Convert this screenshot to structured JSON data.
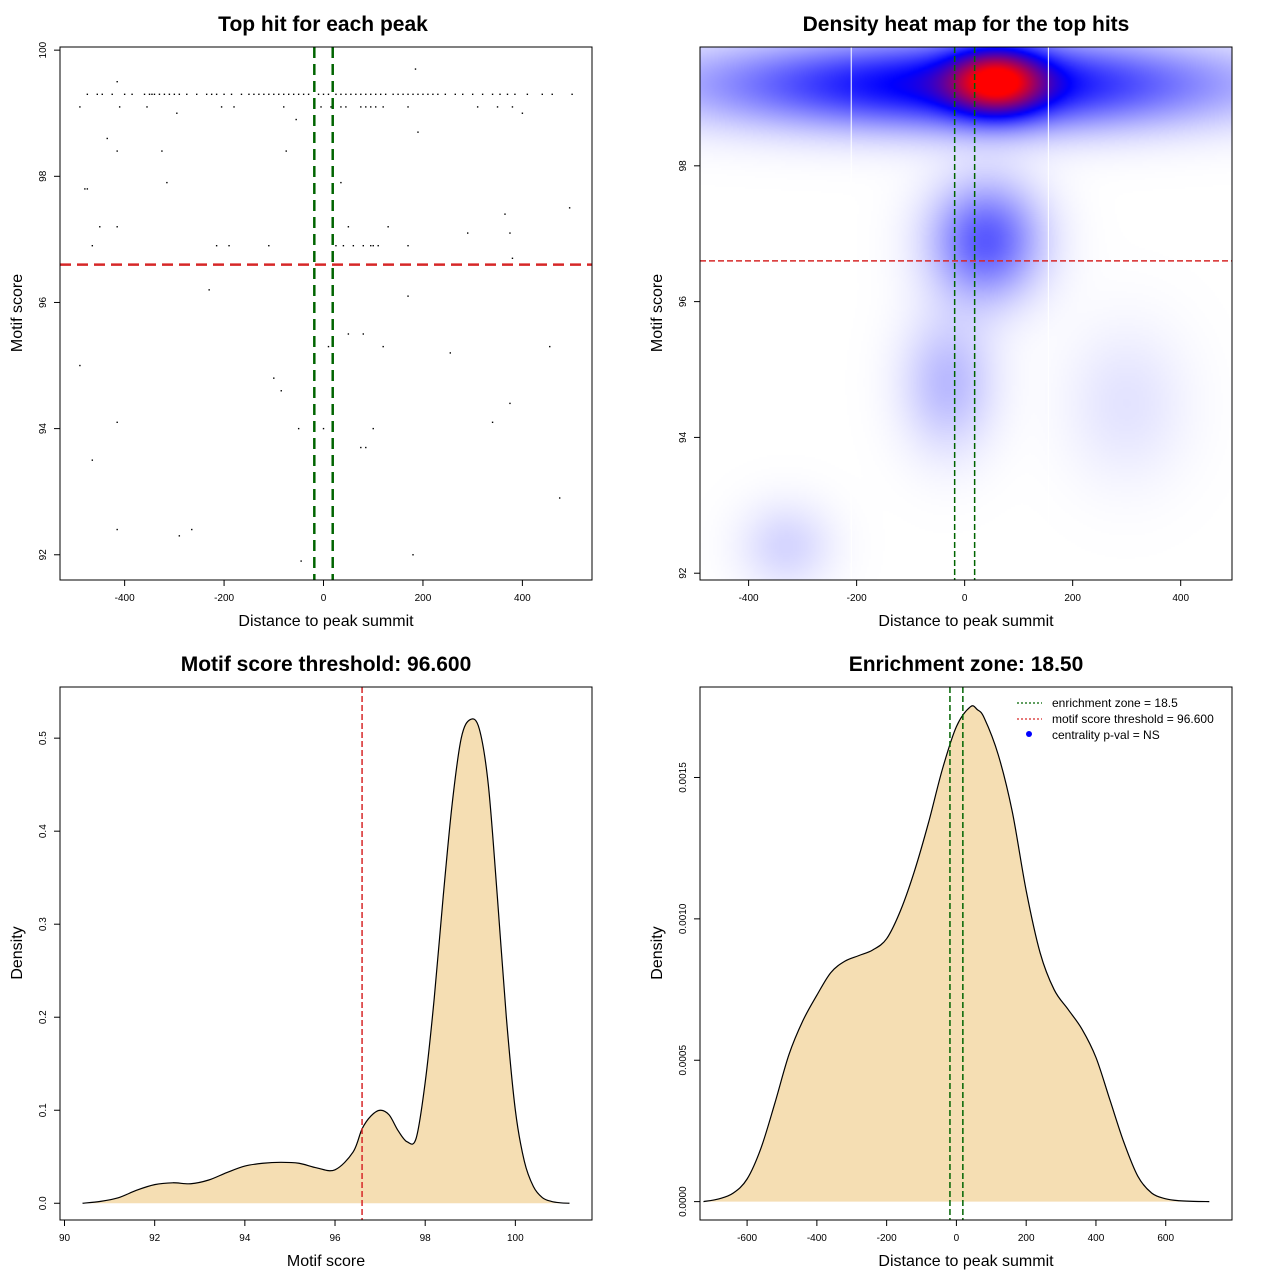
{
  "chart_data": [
    {
      "id": "scatter",
      "type": "scatter",
      "title": "Top hit for each peak",
      "xlabel": "Distance to peak summit",
      "ylabel": "Motif score",
      "xlim": [
        -530,
        540
      ],
      "ylim": [
        91.6,
        100.05
      ],
      "xticks": [
        -400,
        -200,
        0,
        200,
        400
      ],
      "yticks": [
        92,
        94,
        96,
        98,
        100
      ],
      "xtick_labels": [
        "-400",
        "-200",
        "0",
        "200",
        "400"
      ],
      "ytick_labels": [
        "92",
        "94",
        "96",
        "98",
        "100"
      ],
      "hlines": [
        {
          "y": 96.6,
          "color": "#d62728"
        }
      ],
      "vlines": [
        {
          "x": -18.5,
          "color": "#006400"
        },
        {
          "x": 18.5,
          "color": "#006400"
        }
      ],
      "points": [
        [
          -475,
          99.3
        ],
        [
          -455,
          99.3
        ],
        [
          -445,
          99.3
        ],
        [
          -425,
          99.3
        ],
        [
          -410,
          99.1
        ],
        [
          -400,
          99.3
        ],
        [
          -385,
          99.3
        ],
        [
          -360,
          99.3
        ],
        [
          -350,
          99.3
        ],
        [
          -345,
          99.3
        ],
        [
          -340,
          99.3
        ],
        [
          -330,
          99.3
        ],
        [
          -320,
          99.3
        ],
        [
          -310,
          99.3
        ],
        [
          -300,
          99.3
        ],
        [
          -290,
          99.3
        ],
        [
          -275,
          99.3
        ],
        [
          -255,
          99.3
        ],
        [
          -235,
          99.3
        ],
        [
          -225,
          99.3
        ],
        [
          -215,
          99.3
        ],
        [
          -200,
          99.3
        ],
        [
          -185,
          99.3
        ],
        [
          -165,
          99.3
        ],
        [
          -150,
          99.3
        ],
        [
          -140,
          99.3
        ],
        [
          -130,
          99.3
        ],
        [
          -120,
          99.3
        ],
        [
          -110,
          99.3
        ],
        [
          -100,
          99.3
        ],
        [
          -90,
          99.3
        ],
        [
          -80,
          99.3
        ],
        [
          -70,
          99.3
        ],
        [
          -60,
          99.3
        ],
        [
          -50,
          99.3
        ],
        [
          -40,
          99.3
        ],
        [
          -30,
          99.3
        ],
        [
          -10,
          99.3
        ],
        [
          0,
          99.3
        ],
        [
          10,
          99.3
        ],
        [
          25,
          99.3
        ],
        [
          35,
          99.3
        ],
        [
          45,
          99.3
        ],
        [
          55,
          99.3
        ],
        [
          65,
          99.3
        ],
        [
          75,
          99.3
        ],
        [
          85,
          99.3
        ],
        [
          95,
          99.3
        ],
        [
          105,
          99.3
        ],
        [
          115,
          99.3
        ],
        [
          125,
          99.3
        ],
        [
          140,
          99.3
        ],
        [
          150,
          99.3
        ],
        [
          160,
          99.3
        ],
        [
          170,
          99.3
        ],
        [
          180,
          99.3
        ],
        [
          190,
          99.3
        ],
        [
          200,
          99.3
        ],
        [
          210,
          99.3
        ],
        [
          220,
          99.3
        ],
        [
          230,
          99.3
        ],
        [
          245,
          99.3
        ],
        [
          265,
          99.3
        ],
        [
          280,
          99.3
        ],
        [
          300,
          99.3
        ],
        [
          320,
          99.3
        ],
        [
          340,
          99.3
        ],
        [
          355,
          99.3
        ],
        [
          370,
          99.3
        ],
        [
          385,
          99.3
        ],
        [
          410,
          99.3
        ],
        [
          440,
          99.3
        ],
        [
          460,
          99.3
        ],
        [
          500,
          99.3
        ],
        [
          -490,
          99.1
        ],
        [
          -355,
          99.1
        ],
        [
          -205,
          99.1
        ],
        [
          -180,
          99.1
        ],
        [
          -80,
          99.1
        ],
        [
          -5,
          99.1
        ],
        [
          15,
          99.1
        ],
        [
          35,
          99.1
        ],
        [
          45,
          99.1
        ],
        [
          75,
          99.1
        ],
        [
          85,
          99.1
        ],
        [
          95,
          99.1
        ],
        [
          105,
          99.1
        ],
        [
          120,
          99.1
        ],
        [
          170,
          99.1
        ],
        [
          310,
          99.1
        ],
        [
          350,
          99.1
        ],
        [
          380,
          99.1
        ],
        [
          400,
          99.0
        ],
        [
          -295,
          99.0
        ],
        [
          -415,
          99.5
        ],
        [
          185,
          99.7
        ],
        [
          -55,
          98.9
        ],
        [
          -435,
          98.6
        ],
        [
          190,
          98.7
        ],
        [
          -325,
          98.4
        ],
        [
          -415,
          98.4
        ],
        [
          -75,
          98.4
        ],
        [
          -480,
          97.8
        ],
        [
          -475,
          97.8
        ],
        [
          -315,
          97.9
        ],
        [
          35,
          97.9
        ],
        [
          -450,
          97.2
        ],
        [
          -415,
          97.2
        ],
        [
          50,
          97.2
        ],
        [
          130,
          97.2
        ],
        [
          365,
          97.4
        ],
        [
          495,
          97.5
        ],
        [
          -465,
          96.9
        ],
        [
          -215,
          96.9
        ],
        [
          -190,
          96.9
        ],
        [
          -110,
          96.9
        ],
        [
          25,
          96.9
        ],
        [
          40,
          96.9
        ],
        [
          60,
          96.9
        ],
        [
          80,
          96.9
        ],
        [
          95,
          96.9
        ],
        [
          100,
          96.9
        ],
        [
          110,
          96.9
        ],
        [
          170,
          96.9
        ],
        [
          290,
          97.1
        ],
        [
          375,
          97.1
        ],
        [
          380,
          96.7
        ],
        [
          -270,
          96.6
        ],
        [
          -230,
          96.2
        ],
        [
          170,
          96.1
        ],
        [
          50,
          95.5
        ],
        [
          80,
          95.5
        ],
        [
          120,
          95.3
        ],
        [
          255,
          95.2
        ],
        [
          455,
          95.3
        ],
        [
          -490,
          95.0
        ],
        [
          -100,
          94.8
        ],
        [
          -85,
          94.6
        ],
        [
          375,
          94.4
        ],
        [
          -415,
          94.1
        ],
        [
          -50,
          94.0
        ],
        [
          100,
          94.0
        ],
        [
          340,
          94.1
        ],
        [
          75,
          93.7
        ],
        [
          85,
          93.7
        ],
        [
          -465,
          93.5
        ],
        [
          475,
          92.9
        ],
        [
          -415,
          92.4
        ],
        [
          -265,
          92.4
        ],
        [
          -290,
          92.3
        ],
        [
          -45,
          91.9
        ],
        [
          180,
          92.0
        ],
        [
          0,
          94.0
        ],
        [
          10,
          95.3
        ]
      ]
    },
    {
      "id": "heatmap",
      "type": "heatmap",
      "title": "Density heat map for the top hits",
      "xlabel": "Distance to peak summit",
      "ylabel": "Motif score",
      "xlim": [
        -490,
        495
      ],
      "ylim": [
        91.9,
        99.75
      ],
      "xticks": [
        -400,
        -200,
        0,
        200,
        400
      ],
      "yticks": [
        92,
        94,
        96,
        98
      ],
      "xtick_labels": [
        "-400",
        "-200",
        "0",
        "200",
        "400"
      ],
      "ytick_labels": [
        "92",
        "94",
        "96",
        "98"
      ],
      "hlines": [
        {
          "y": 96.6,
          "color": "#d62728"
        }
      ],
      "vlines": [
        {
          "x": -18.5,
          "color": "#006400"
        },
        {
          "x": 18.5,
          "color": "#006400"
        }
      ],
      "white_lines_x": [
        -210,
        155
      ],
      "color_scale": [
        "#ffffff",
        "#0000ff",
        "#ff0000"
      ],
      "hotspots": [
        {
          "x": 0,
          "y": 99.2,
          "sx": 330,
          "sy": 0.45,
          "w": 1.0
        },
        {
          "x": 60,
          "y": 99.25,
          "sx": 60,
          "sy": 0.35,
          "w": 1.1
        },
        {
          "x": 40,
          "y": 96.9,
          "sx": 70,
          "sy": 0.6,
          "w": 0.6
        },
        {
          "x": -30,
          "y": 94.8,
          "sx": 60,
          "sy": 0.7,
          "w": 0.25
        },
        {
          "x": -330,
          "y": 92.4,
          "sx": 60,
          "sy": 0.45,
          "w": 0.15
        },
        {
          "x": 300,
          "y": 94.5,
          "sx": 80,
          "sy": 0.8,
          "w": 0.1
        }
      ]
    },
    {
      "id": "score-density",
      "type": "area",
      "title": "Motif score threshold: 96.600",
      "xlabel": "Motif score",
      "ylabel": "Density",
      "xlim": [
        89.9,
        101.7
      ],
      "ylim": [
        -0.018,
        0.555
      ],
      "xticks": [
        90,
        92,
        94,
        96,
        98,
        100
      ],
      "yticks": [
        0.0,
        0.1,
        0.2,
        0.3,
        0.4,
        0.5
      ],
      "xtick_labels": [
        "90",
        "92",
        "94",
        "96",
        "98",
        "100"
      ],
      "ytick_labels": [
        "0.0",
        "0.1",
        "0.2",
        "0.3",
        "0.4",
        "0.5"
      ],
      "fill": "#f5deb3",
      "vlines": [
        {
          "x": 96.6,
          "color": "#d62728"
        }
      ],
      "x": [
        90.4,
        90.8,
        91.2,
        91.6,
        92.0,
        92.4,
        92.8,
        93.2,
        93.6,
        94.0,
        94.4,
        94.8,
        95.2,
        95.6,
        96.0,
        96.4,
        96.6,
        96.8,
        97.0,
        97.2,
        97.4,
        97.6,
        97.8,
        98.0,
        98.2,
        98.4,
        98.6,
        98.8,
        99.0,
        99.2,
        99.4,
        99.6,
        99.8,
        100.0,
        100.2,
        100.4,
        100.6,
        100.8,
        101.0,
        101.2
      ],
      "y": [
        0.0,
        0.002,
        0.006,
        0.014,
        0.02,
        0.022,
        0.021,
        0.025,
        0.033,
        0.04,
        0.043,
        0.044,
        0.043,
        0.038,
        0.036,
        0.055,
        0.08,
        0.094,
        0.1,
        0.095,
        0.078,
        0.066,
        0.07,
        0.13,
        0.22,
        0.33,
        0.43,
        0.5,
        0.52,
        0.51,
        0.45,
        0.33,
        0.2,
        0.1,
        0.045,
        0.018,
        0.006,
        0.002,
        0.0005,
        0.0
      ]
    },
    {
      "id": "distance-density",
      "type": "area",
      "title": "Enrichment zone: 18.50",
      "xlabel": "Distance to peak summit",
      "ylabel": "Density",
      "xlim": [
        -735,
        790
      ],
      "ylim": [
        -6.5e-05,
        0.00182
      ],
      "xticks": [
        -600,
        -400,
        -200,
        0,
        200,
        400,
        600
      ],
      "yticks": [
        0.0,
        0.0005,
        0.001,
        0.0015
      ],
      "xtick_labels": [
        "-600",
        "-400",
        "-200",
        "0",
        "200",
        "400",
        "600"
      ],
      "ytick_labels": [
        "0.0000",
        "0.0005",
        "0.0010",
        "0.0015"
      ],
      "fill": "#f5deb3",
      "vlines": [
        {
          "x": -18.5,
          "color": "#006400"
        },
        {
          "x": 18.5,
          "color": "#006400"
        }
      ],
      "x": [
        -725,
        -680,
        -640,
        -600,
        -560,
        -520,
        -480,
        -440,
        -400,
        -360,
        -320,
        -280,
        -240,
        -200,
        -160,
        -120,
        -80,
        -40,
        0,
        40,
        60,
        80,
        120,
        160,
        200,
        240,
        280,
        320,
        360,
        400,
        440,
        480,
        520,
        560,
        600,
        640,
        680,
        725
      ],
      "y": [
        0.0,
        1e-05,
        3e-05,
        8e-05,
        0.00019,
        0.00035,
        0.00052,
        0.00064,
        0.00073,
        0.00081,
        0.00085,
        0.00087,
        0.00089,
        0.00093,
        0.00103,
        0.00117,
        0.00134,
        0.00153,
        0.00168,
        0.00175,
        0.00174,
        0.00171,
        0.00158,
        0.00138,
        0.0011,
        0.00088,
        0.00075,
        0.00068,
        0.00061,
        0.00051,
        0.00036,
        0.00021,
        9e-05,
        3e-05,
        1e-05,
        3e-06,
        1e-06,
        0.0
      ],
      "legend": [
        {
          "label": "enrichment zone = 18.5",
          "style": "dotted",
          "color": "#006400"
        },
        {
          "label": "motif score threshold = 96.600",
          "style": "dotted",
          "color": "#d62728"
        },
        {
          "label": "centrality p-val = NS",
          "style": "point",
          "color": "#0000ff"
        }
      ],
      "legend_position": "top-right"
    }
  ]
}
